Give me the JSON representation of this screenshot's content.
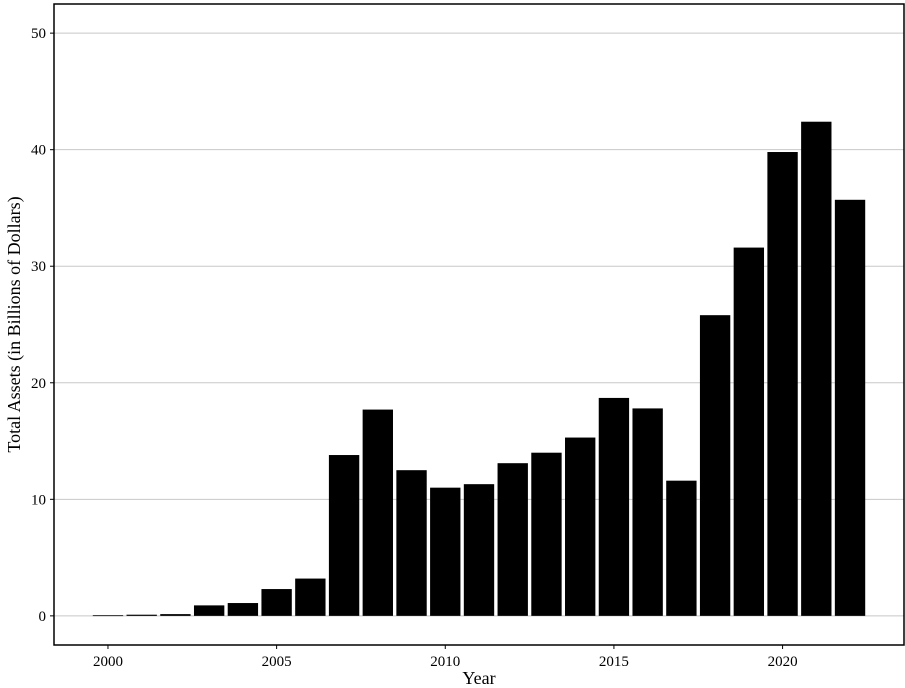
{
  "chart_data": {
    "type": "bar",
    "title": "",
    "xlabel": "Year",
    "ylabel": "Total Assets (in Billions of Dollars)",
    "ylim": [
      -2.5,
      52.5
    ],
    "xlim": [
      1998.4,
      2023.6
    ],
    "grid": "horizontal major",
    "legend": "none",
    "bar_color": "#000000",
    "x_ticks": [
      2000,
      2005,
      2010,
      2015,
      2020
    ],
    "y_ticks": [
      0,
      10,
      20,
      30,
      40,
      50
    ],
    "categories": [
      2000,
      2001,
      2002,
      2003,
      2004,
      2005,
      2006,
      2007,
      2008,
      2009,
      2010,
      2011,
      2012,
      2013,
      2014,
      2015,
      2016,
      2017,
      2018,
      2019,
      2020,
      2021,
      2022
    ],
    "values": [
      0.05,
      0.1,
      0.15,
      0.9,
      1.1,
      2.3,
      3.2,
      13.8,
      17.7,
      12.5,
      11.0,
      11.3,
      13.1,
      14.0,
      15.3,
      18.7,
      17.8,
      11.6,
      25.8,
      31.6,
      39.8,
      42.4,
      35.7
    ]
  }
}
